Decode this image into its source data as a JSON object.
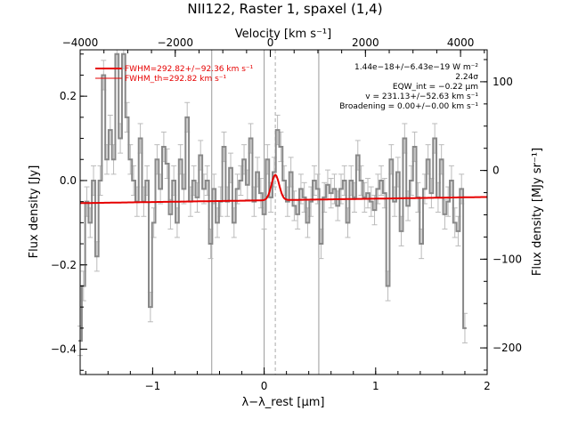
{
  "chart_data": {
    "type": "line",
    "title": "NII122, Raster 1, spaxel (1,4)",
    "xlabel": "λ−λ_rest [μm]",
    "ylabel": "Flux density [Jy]",
    "top_label": "Velocity [km s⁻¹]",
    "right_label": "Flux density [MJy sr⁻¹]",
    "xlim": [
      -1.65,
      2.0
    ],
    "ylim": [
      -0.46,
      0.31
    ],
    "top_xlim": [
      -4000,
      4560
    ],
    "right_ylim": [
      -230,
      136
    ],
    "xticks": [
      -1,
      0,
      1,
      2
    ],
    "xtick_labels": [
      "−1",
      "0",
      "1",
      "2"
    ],
    "yticks": [
      -0.4,
      -0.2,
      0.0,
      0.2
    ],
    "ytick_labels": [
      "−0.4",
      "−0.2",
      "0.0",
      "0.2"
    ],
    "top_ticks": [
      -4000,
      -2000,
      0,
      2000,
      4000
    ],
    "top_tick_labels": [
      "−4000",
      "−2000",
      "0",
      "2000",
      "4000"
    ],
    "right_ticks": [
      -200,
      -100,
      0,
      100
    ],
    "right_tick_labels": [
      "−200",
      "−100",
      "0",
      "100"
    ],
    "vlines_solid": [
      -0.47,
      0.0,
      0.49
    ],
    "vline_dashed": 0.1,
    "legend": {
      "fit_label": "FWHM=292.82+/−92.36 km s⁻¹",
      "theory_label": "FWHM_th=292.82 km s⁻¹",
      "position": "top-left"
    },
    "annotations": {
      "line_flux": "1.44e−18+/−6.43e−19 W m⁻²",
      "significance": "2.24σ",
      "eqw": "EQW_int = −0.22 μm",
      "velocity": "v = 231.13+/−52.63 km s⁻¹",
      "broadening": "Broadening = 0.00+/−0.00 km s⁻¹"
    },
    "series": [
      {
        "name": "data",
        "color": "#888888",
        "x": [
          -1.65,
          -1.62,
          -1.59,
          -1.56,
          -1.53,
          -1.5,
          -1.47,
          -1.44,
          -1.41,
          -1.38,
          -1.35,
          -1.32,
          -1.29,
          -1.26,
          -1.23,
          -1.2,
          -1.17,
          -1.14,
          -1.11,
          -1.08,
          -1.05,
          -1.02,
          -0.99,
          -0.96,
          -0.93,
          -0.9,
          -0.87,
          -0.84,
          -0.81,
          -0.78,
          -0.75,
          -0.72,
          -0.69,
          -0.66,
          -0.63,
          -0.6,
          -0.57,
          -0.54,
          -0.51,
          -0.48,
          -0.45,
          -0.42,
          -0.39,
          -0.36,
          -0.33,
          -0.3,
          -0.27,
          -0.24,
          -0.21,
          -0.18,
          -0.15,
          -0.12,
          -0.09,
          -0.06,
          -0.03,
          0.0,
          0.03,
          0.06,
          0.09,
          0.12,
          0.15,
          0.18,
          0.21,
          0.24,
          0.27,
          0.3,
          0.33,
          0.36,
          0.39,
          0.42,
          0.45,
          0.48,
          0.51,
          0.54,
          0.57,
          0.6,
          0.63,
          0.66,
          0.69,
          0.72,
          0.75,
          0.78,
          0.81,
          0.84,
          0.87,
          0.9,
          0.93,
          0.96,
          0.99,
          1.02,
          1.05,
          1.08,
          1.11,
          1.14,
          1.17,
          1.2,
          1.23,
          1.26,
          1.29,
          1.32,
          1.35,
          1.38,
          1.41,
          1.44,
          1.47,
          1.5,
          1.53,
          1.56,
          1.59,
          1.62,
          1.65,
          1.68,
          1.71,
          1.74,
          1.77,
          1.8
        ],
        "y": [
          -0.38,
          -0.25,
          -0.05,
          -0.1,
          0.0,
          -0.18,
          0.0,
          0.25,
          0.05,
          0.12,
          0.05,
          0.3,
          0.1,
          0.3,
          0.15,
          0.05,
          0.0,
          -0.05,
          0.1,
          -0.05,
          0.0,
          -0.3,
          -0.1,
          0.05,
          -0.02,
          0.08,
          0.04,
          -0.08,
          0.0,
          -0.1,
          0.05,
          -0.02,
          0.15,
          -0.05,
          0.0,
          -0.04,
          0.06,
          -0.02,
          0.0,
          -0.15,
          -0.02,
          -0.1,
          -0.05,
          0.08,
          -0.05,
          0.03,
          -0.1,
          -0.02,
          0.0,
          0.05,
          -0.01,
          0.1,
          -0.05,
          0.02,
          -0.03,
          -0.08,
          0.05,
          -0.04,
          0.02,
          0.12,
          0.08,
          0.0,
          -0.05,
          0.02,
          -0.06,
          -0.08,
          -0.02,
          -0.04,
          -0.1,
          -0.05,
          0.0,
          -0.02,
          -0.15,
          -0.04,
          -0.01,
          -0.03,
          -0.02,
          -0.06,
          -0.02,
          0.0,
          -0.1,
          0.0,
          -0.04,
          0.06,
          0.0,
          -0.04,
          -0.03,
          -0.05,
          -0.07,
          -0.02,
          0.0,
          -0.03,
          -0.25,
          0.05,
          -0.05,
          0.02,
          -0.12,
          0.1,
          -0.06,
          0.0,
          0.08,
          -0.04,
          -0.15,
          -0.02,
          0.05,
          -0.03,
          0.1,
          -0.04,
          0.05,
          -0.08,
          -0.05,
          0.0,
          -0.1,
          -0.12,
          -0.02,
          -0.35
        ],
        "yerr": 0.035
      },
      {
        "name": "fit",
        "color": "#e60000",
        "continuum": -0.047,
        "continuum_slope": 0.004,
        "peak": 0.06,
        "center": 0.1,
        "sigma": 0.035
      }
    ]
  }
}
